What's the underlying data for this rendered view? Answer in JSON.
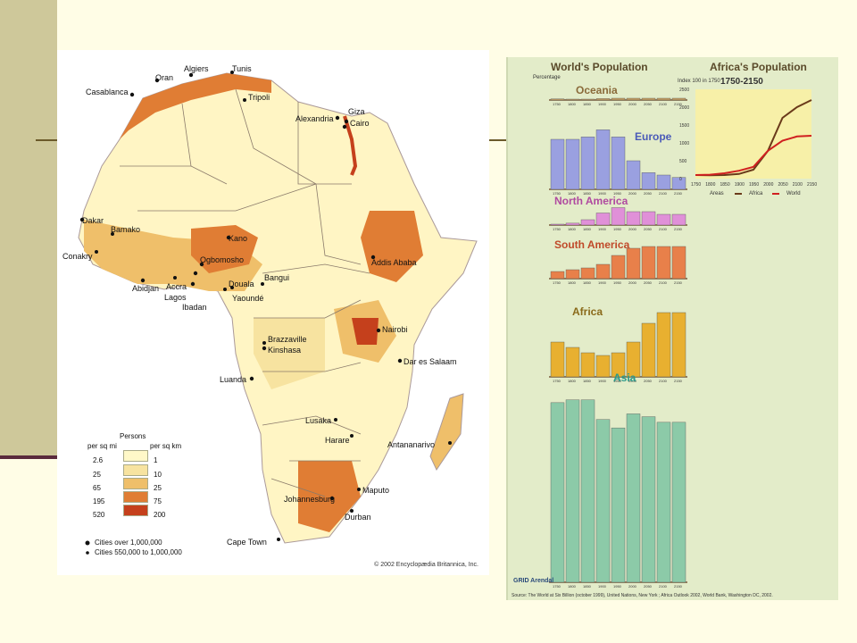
{
  "map": {
    "cities": [
      "Algiers",
      "Tunis",
      "Oran",
      "Casablanca",
      "Tripoli",
      "Alexandria",
      "Giza",
      "Cairo",
      "Dakar",
      "Bamako",
      "Kano",
      "Conakry",
      "Ogbomosho",
      "Abidjan",
      "Accra",
      "Lagos",
      "Ibadan",
      "Yaoundé",
      "Douala",
      "Bangui",
      "Addis Ababa",
      "Nairobi",
      "Brazzaville",
      "Kinshasa",
      "Dar es Salaam",
      "Luanda",
      "Lusaka",
      "Harare",
      "Antananarivo",
      "Maputo",
      "Johannesburg",
      "Durban",
      "Cape Town"
    ],
    "legend": {
      "title": "Persons",
      "col_mi": "per sq mi",
      "col_km": "per sq km",
      "rows": [
        {
          "mi": "2.6",
          "km": "1",
          "color": "#fff8c8"
        },
        {
          "mi": "25",
          "km": "10",
          "color": "#f7e3a0"
        },
        {
          "mi": "65",
          "km": "25",
          "color": "#efbf6a"
        },
        {
          "mi": "195",
          "km": "75",
          "color": "#e07d34"
        },
        {
          "mi": "520",
          "km": "200",
          "color": "#c5401c"
        }
      ]
    },
    "cities_note_1": "Cities over 1,000,000",
    "cities_note_2": "Cities 550,000 to 1,000,000",
    "copyright": "© 2002 Encyclopædia Britannica, Inc."
  },
  "charts": {
    "world_title": "World's Population",
    "africa_title": "Africa's Population",
    "africa_sub": "1750-2150",
    "percentage_label": "Percentage",
    "index_label": "Index 100 in 1750",
    "legend_africa": "Africa",
    "legend_world": "World",
    "areas_label": "Areas",
    "regions": [
      "Oceania",
      "Europe",
      "North America",
      "South America",
      "Africa",
      "Asia"
    ],
    "years": [
      "1750",
      "1800",
      "1850",
      "1900",
      "1950",
      "2000",
      "2050",
      "2100",
      "2150"
    ],
    "source": "Source: The World at Six Billion (october 1999), United Nations, New York ; Africa Outlook 2002, World Bank, Washington DC, 2002.",
    "grid_logo": "GRID Arendal"
  },
  "chart_data": [
    {
      "type": "bar",
      "title": "World's Population",
      "ylabel": "Percentage",
      "categories": [
        "1750",
        "1800",
        "1850",
        "1900",
        "1950",
        "2000",
        "2050",
        "2100",
        "2150"
      ],
      "series": [
        {
          "name": "Oceania",
          "values": [
            0.3,
            0.2,
            0.2,
            0.4,
            0.5,
            0.5,
            0.5,
            0.5,
            0.5
          ]
        },
        {
          "name": "Europe",
          "values": [
            21,
            21,
            22,
            25,
            22,
            12,
            7,
            6,
            5
          ]
        },
        {
          "name": "North America",
          "values": [
            0.3,
            0.7,
            2,
            4.5,
            6.5,
            5,
            5,
            4,
            4
          ]
        },
        {
          "name": "South America",
          "values": [
            2,
            2.5,
            3,
            4,
            6.5,
            8.5,
            9,
            9,
            9
          ]
        },
        {
          "name": "Africa",
          "values": [
            13,
            11,
            9,
            8,
            9,
            13,
            20,
            24,
            24
          ]
        },
        {
          "name": "Asia",
          "values": [
            64,
            65,
            65,
            58,
            55,
            60,
            59,
            57,
            57
          ]
        }
      ]
    },
    {
      "type": "line",
      "title": "Africa's Population",
      "subtitle": "1750-2150",
      "ylabel": "Index 100 in 1750",
      "x": [
        "1750",
        "1800",
        "1850",
        "1900",
        "1950",
        "2000",
        "2050",
        "2100",
        "2150"
      ],
      "ylim": [
        0,
        2500
      ],
      "series": [
        {
          "name": "Africa",
          "values": [
            100,
            95,
            100,
            130,
            250,
            780,
            1700,
            2000,
            2200
          ]
        },
        {
          "name": "World",
          "values": [
            100,
            110,
            150,
            220,
            330,
            780,
            1060,
            1180,
            1200
          ]
        }
      ]
    }
  ]
}
